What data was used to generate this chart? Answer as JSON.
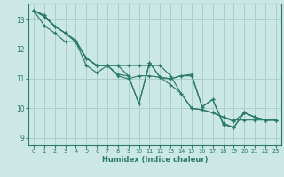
{
  "xlabel": "Humidex (Indice chaleur)",
  "bg_color": "#cce8e5",
  "grid_color": "#aacfcc",
  "line_color": "#2a7a6a",
  "xlim": [
    -0.5,
    23.5
  ],
  "ylim": [
    8.75,
    13.55
  ],
  "yticks": [
    9,
    10,
    11,
    12,
    13
  ],
  "xticks": [
    0,
    1,
    2,
    3,
    4,
    5,
    6,
    7,
    8,
    9,
    10,
    11,
    12,
    13,
    14,
    15,
    16,
    17,
    18,
    19,
    20,
    21,
    22,
    23
  ],
  "series": [
    [
      13.32,
      13.15,
      12.78,
      12.55,
      12.25,
      11.45,
      11.2,
      11.45,
      11.45,
      11.1,
      10.15,
      11.55,
      11.05,
      11.0,
      11.1,
      11.1,
      10.05,
      10.3,
      9.45,
      9.35,
      9.85,
      9.7,
      9.6,
      9.6
    ],
    [
      13.32,
      13.15,
      12.78,
      12.55,
      12.25,
      11.7,
      11.45,
      11.45,
      11.45,
      11.45,
      11.45,
      11.45,
      11.45,
      11.1,
      10.5,
      10.0,
      9.95,
      9.85,
      9.7,
      9.6,
      9.6,
      9.6,
      9.6,
      9.6
    ],
    [
      13.32,
      12.8,
      12.55,
      12.25,
      12.25,
      11.7,
      11.45,
      11.45,
      11.1,
      11.0,
      11.1,
      11.1,
      11.05,
      10.8,
      10.5,
      10.0,
      9.95,
      9.85,
      9.7,
      9.55,
      9.85,
      9.7,
      9.6,
      9.6
    ],
    [
      13.32,
      13.1,
      12.78,
      12.55,
      12.3,
      11.7,
      11.45,
      11.45,
      11.15,
      11.1,
      10.15,
      11.55,
      11.05,
      11.0,
      11.1,
      11.15,
      10.05,
      10.3,
      9.5,
      9.35,
      9.85,
      9.7,
      9.6,
      9.6
    ]
  ]
}
